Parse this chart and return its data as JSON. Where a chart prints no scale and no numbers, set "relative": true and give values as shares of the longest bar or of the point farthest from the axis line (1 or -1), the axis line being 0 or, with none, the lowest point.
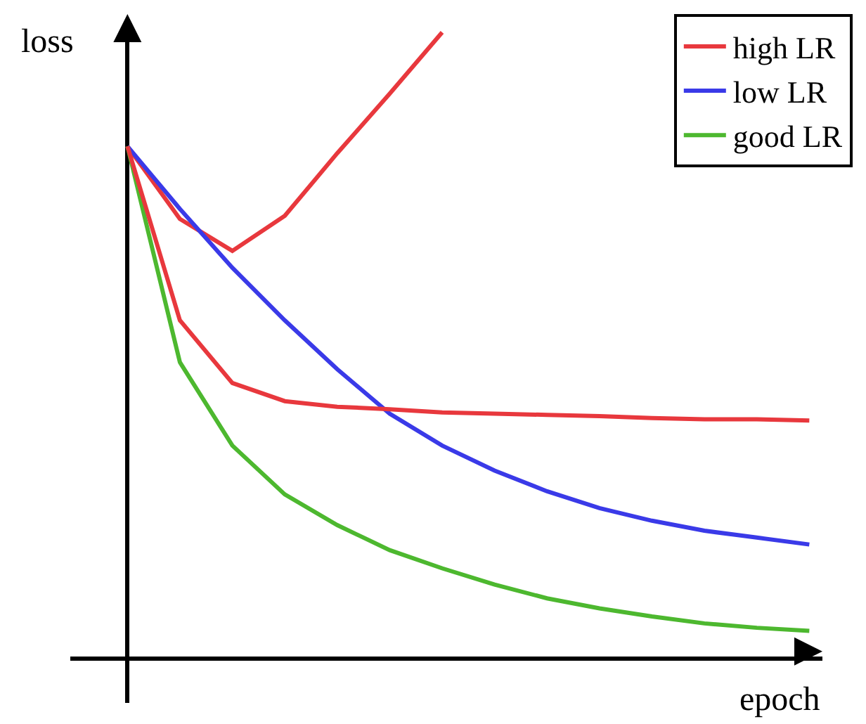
{
  "chart_data": {
    "type": "line",
    "xlabel": "epoch",
    "ylabel": "loss",
    "relative": true,
    "tick_labels": false,
    "grid": false,
    "legend": "top right",
    "marker": "none",
    "line_style": "solid",
    "categories": [
      null,
      null,
      null,
      null,
      null,
      null,
      null,
      null,
      null,
      null,
      null,
      null,
      null,
      null
    ],
    "series": [
      {
        "name": "high LR",
        "color": "#e8383d",
        "values": [
          0.818,
          0.702,
          0.651,
          0.707,
          0.807,
          0.902,
          1.0,
          null,
          null,
          null,
          null,
          null,
          null,
          null
        ]
      },
      {
        "name": "low LR",
        "color": "#3a3ae8",
        "values": [
          0.818,
          0.718,
          0.624,
          0.54,
          0.462,
          0.391,
          0.34,
          0.3,
          0.267,
          0.24,
          0.22,
          0.204,
          0.193,
          0.182
        ]
      },
      {
        "name": "good LR",
        "color": "#4db82f",
        "values": [
          0.818,
          0.473,
          0.34,
          0.262,
          0.213,
          0.173,
          0.144,
          0.118,
          0.096,
          0.08,
          0.067,
          0.056,
          0.049,
          0.044
        ]
      },
      {
        "color": "#e8383d",
        "values": [
          0.818,
          0.54,
          0.44,
          0.411,
          0.402,
          0.398,
          0.393,
          0.391,
          0.389,
          0.387,
          0.384,
          0.382,
          0.382,
          0.38
        ]
      }
    ]
  }
}
